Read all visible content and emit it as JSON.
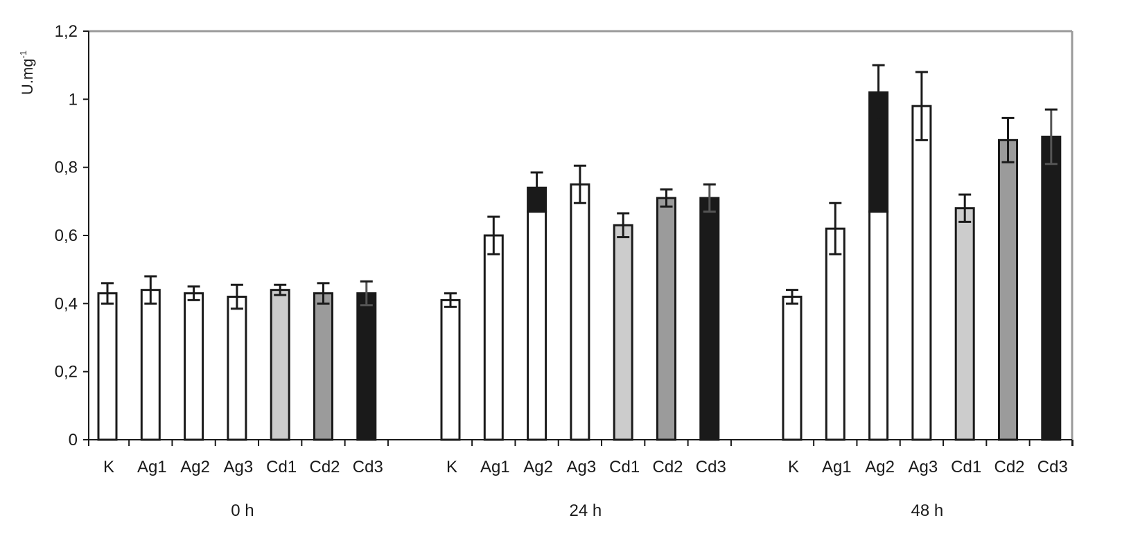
{
  "chart_data": {
    "type": "bar",
    "ylabel": "U.mg",
    "ylabel_superscript": "-1",
    "xlabel": "",
    "ylim": [
      0,
      1.2
    ],
    "yticks": [
      {
        "value": 0,
        "label": "0"
      },
      {
        "value": 0.2,
        "label": "0,2"
      },
      {
        "value": 0.4,
        "label": "0,4"
      },
      {
        "value": 0.6,
        "label": "0,6"
      },
      {
        "value": 0.8,
        "label": "0,8"
      },
      {
        "value": 1.0,
        "label": "1"
      },
      {
        "value": 1.2,
        "label": "1,2"
      }
    ],
    "grid": false,
    "legend": "none",
    "groups": [
      {
        "label": "0 h",
        "bars": [
          {
            "category": "K",
            "value": 0.43,
            "error": 0.03,
            "style": "white"
          },
          {
            "category": "Ag1",
            "value": 0.44,
            "error": 0.04,
            "style": "white"
          },
          {
            "category": "Ag2",
            "value": 0.43,
            "error": 0.02,
            "style": "white"
          },
          {
            "category": "Ag3",
            "value": 0.42,
            "error": 0.035,
            "style": "white"
          },
          {
            "category": "Cd1",
            "value": 0.44,
            "error": 0.015,
            "style": "light-gray"
          },
          {
            "category": "Cd2",
            "value": 0.43,
            "error": 0.03,
            "style": "mid-gray"
          },
          {
            "category": "Cd3",
            "value": 0.43,
            "error": 0.035,
            "style": "black"
          }
        ]
      },
      {
        "label": "24 h",
        "bars": [
          {
            "category": "K",
            "value": 0.41,
            "error": 0.02,
            "style": "white"
          },
          {
            "category": "Ag1",
            "value": 0.6,
            "error": 0.055,
            "style": "white"
          },
          {
            "category": "Ag2",
            "value": 0.74,
            "error": 0.045,
            "style": "white-black-top"
          },
          {
            "category": "Ag3",
            "value": 0.75,
            "error": 0.055,
            "style": "white"
          },
          {
            "category": "Cd1",
            "value": 0.63,
            "error": 0.035,
            "style": "light-gray"
          },
          {
            "category": "Cd2",
            "value": 0.71,
            "error": 0.025,
            "style": "mid-gray"
          },
          {
            "category": "Cd3",
            "value": 0.71,
            "error": 0.04,
            "style": "black"
          }
        ]
      },
      {
        "label": "48 h",
        "bars": [
          {
            "category": "K",
            "value": 0.42,
            "error": 0.02,
            "style": "white"
          },
          {
            "category": "Ag1",
            "value": 0.62,
            "error": 0.075,
            "style": "white"
          },
          {
            "category": "Ag2",
            "value": 1.02,
            "error": 0.08,
            "style": "white-black-top"
          },
          {
            "category": "Ag3",
            "value": 0.98,
            "error": 0.1,
            "style": "white"
          },
          {
            "category": "Cd1",
            "value": 0.68,
            "error": 0.04,
            "style": "light-gray"
          },
          {
            "category": "Cd2",
            "value": 0.88,
            "error": 0.065,
            "style": "mid-gray"
          },
          {
            "category": "Cd3",
            "value": 0.89,
            "error": 0.08,
            "style": "black"
          }
        ]
      }
    ]
  },
  "colors": {
    "white": "#ffffff",
    "light-gray": "#cccccc",
    "mid-gray": "#9b9b9b",
    "black": "#1a1a1a",
    "stroke": "#1a1a1a",
    "frame": "#9a9a9a"
  }
}
